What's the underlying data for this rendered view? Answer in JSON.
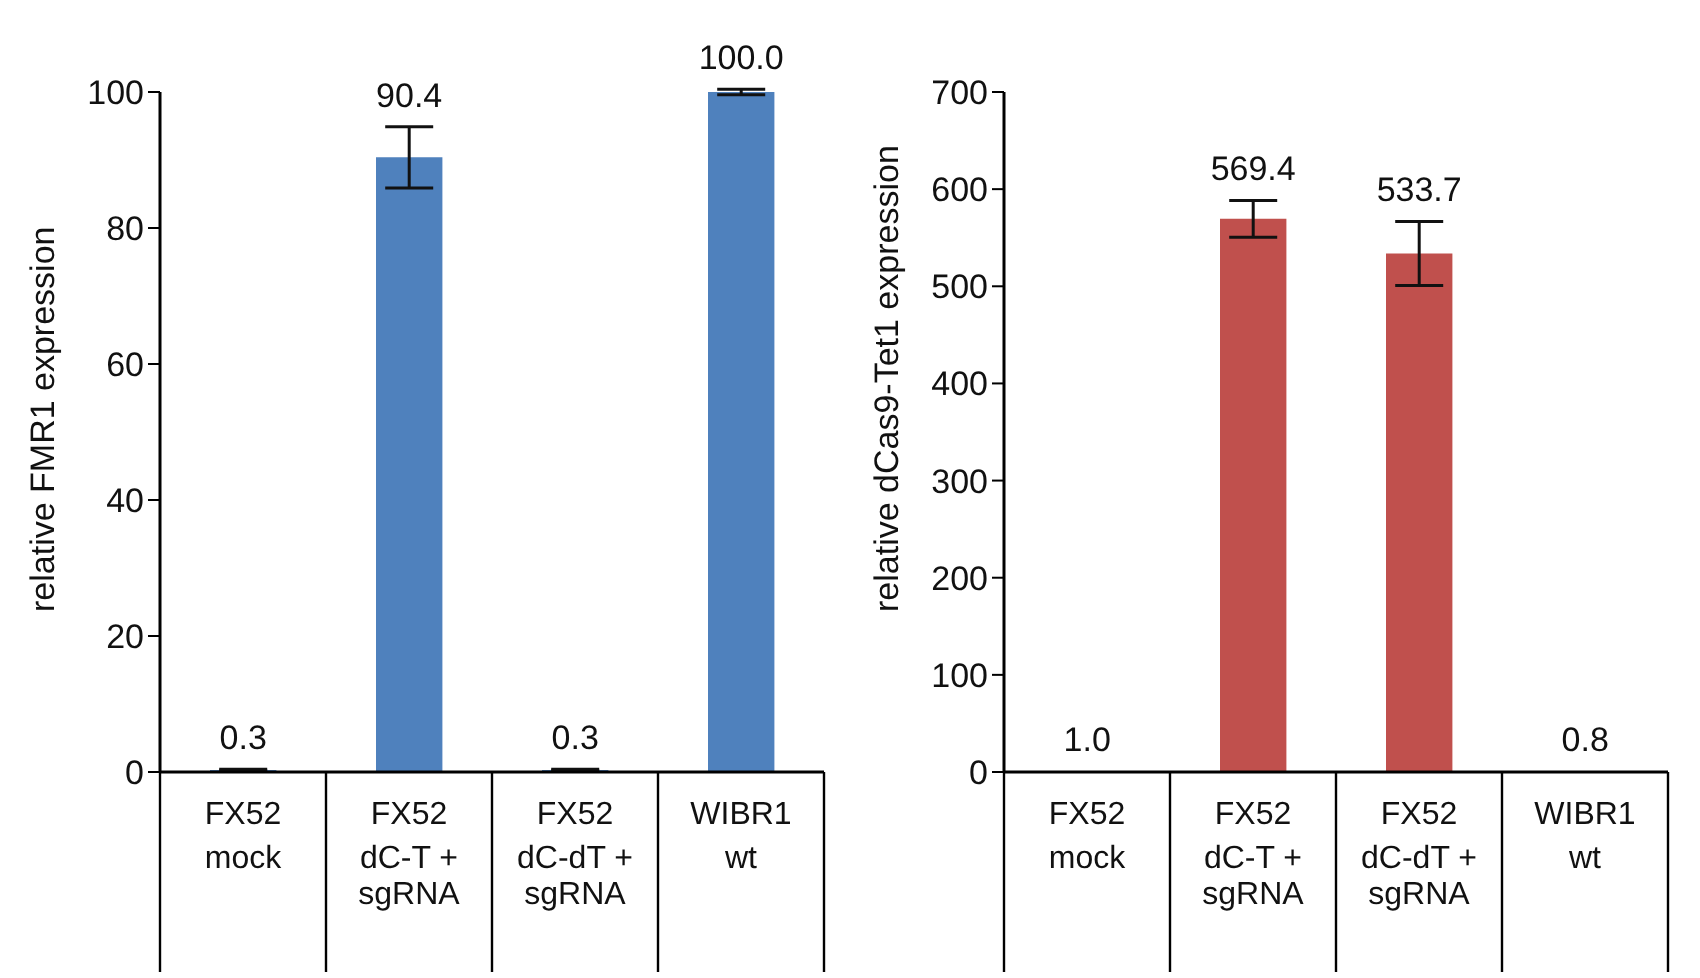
{
  "chart_data": [
    {
      "type": "bar",
      "ylabel": "relative FMR1 expression",
      "categories": [
        "FX52\nmock",
        "FX52\ndC-T +\nsgRNA",
        "FX52\ndC-dT +\nsgRNA",
        "WIBR1\nwt"
      ],
      "values": [
        0.3,
        90.4,
        0.3,
        100.0
      ],
      "errors": [
        0.1,
        4.5,
        0.1,
        0.4
      ],
      "value_labels": [
        "0.3",
        "90.4",
        "0.3",
        "100.0"
      ],
      "color": "#4f81bd",
      "ylim": [
        0,
        100
      ],
      "yticks": [
        0,
        20,
        40,
        60,
        80,
        100
      ],
      "grid": false,
      "legend": false
    },
    {
      "type": "bar",
      "ylabel": "relative dCas9-Tet1 expression",
      "categories": [
        "FX52\nmock",
        "FX52\ndC-T +\nsgRNA",
        "FX52\ndC-dT +\nsgRNA",
        "WIBR1\nwt"
      ],
      "values": [
        1.0,
        569.4,
        533.7,
        0.8
      ],
      "errors": [
        null,
        19,
        33,
        null
      ],
      "value_labels": [
        "1.0",
        "569.4",
        "533.7",
        "0.8"
      ],
      "color": "#c0504d",
      "ylim": [
        0,
        700
      ],
      "yticks": [
        0,
        100,
        200,
        300,
        400,
        500,
        600,
        700
      ],
      "grid": false,
      "legend": false
    }
  ]
}
